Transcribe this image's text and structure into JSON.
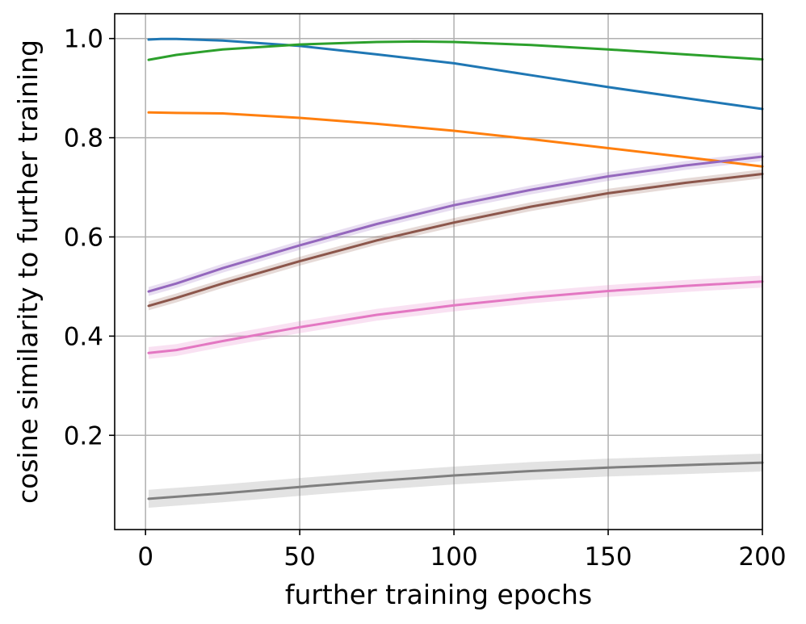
{
  "chart_data": {
    "type": "line",
    "title": "",
    "xlabel": "further training epochs",
    "ylabel": "cosine similarity to further training",
    "xlim": [
      -10,
      200
    ],
    "ylim": [
      0.01,
      1.05
    ],
    "xticks": [
      0,
      50,
      100,
      150,
      200
    ],
    "yticks": [
      0.2,
      0.4,
      0.6,
      0.8,
      1.0
    ],
    "xtick_labels": [
      "0",
      "50",
      "100",
      "150",
      "200"
    ],
    "ytick_labels": [
      "0.2",
      "0.4",
      "0.6",
      "0.8",
      "1.0"
    ],
    "grid": true,
    "legend": "none",
    "series": [
      {
        "color": "#1f77b4",
        "x": [
          1,
          5,
          10,
          25,
          50,
          75,
          100,
          125,
          150,
          175,
          200
        ],
        "y": [
          0.998,
          0.999,
          0.999,
          0.996,
          0.985,
          0.968,
          0.95,
          0.926,
          0.902,
          0.88,
          0.858
        ],
        "band": 0.0
      },
      {
        "color": "#2ca02c",
        "x": [
          1,
          10,
          25,
          50,
          75,
          87,
          100,
          125,
          150,
          175,
          200
        ],
        "y": [
          0.957,
          0.967,
          0.978,
          0.988,
          0.993,
          0.994,
          0.993,
          0.987,
          0.978,
          0.968,
          0.958
        ],
        "band": 0.0
      },
      {
        "color": "#ff7f0e",
        "x": [
          1,
          10,
          25,
          50,
          75,
          100,
          125,
          150,
          175,
          200
        ],
        "y": [
          0.851,
          0.85,
          0.849,
          0.84,
          0.828,
          0.814,
          0.797,
          0.779,
          0.761,
          0.742
        ],
        "band": 0.0
      },
      {
        "color": "#9467bd",
        "x": [
          1,
          10,
          25,
          50,
          75,
          100,
          125,
          150,
          175,
          200
        ],
        "y": [
          0.49,
          0.506,
          0.537,
          0.583,
          0.626,
          0.664,
          0.695,
          0.722,
          0.744,
          0.762
        ],
        "band": 0.009
      },
      {
        "color": "#8c564b",
        "x": [
          1,
          10,
          25,
          50,
          75,
          100,
          125,
          150,
          175,
          200
        ],
        "y": [
          0.461,
          0.477,
          0.506,
          0.551,
          0.593,
          0.629,
          0.661,
          0.688,
          0.709,
          0.727
        ],
        "band": 0.009
      },
      {
        "color": "#e377c2",
        "x": [
          1,
          10,
          25,
          50,
          75,
          100,
          125,
          150,
          175,
          200
        ],
        "y": [
          0.366,
          0.372,
          0.39,
          0.418,
          0.443,
          0.462,
          0.478,
          0.491,
          0.501,
          0.51
        ],
        "band": 0.012
      },
      {
        "color": "#7f7f7f",
        "x": [
          1,
          25,
          50,
          75,
          100,
          125,
          150,
          175,
          200
        ],
        "y": [
          0.072,
          0.083,
          0.096,
          0.108,
          0.119,
          0.128,
          0.135,
          0.14,
          0.145
        ],
        "band": 0.018
      }
    ]
  }
}
